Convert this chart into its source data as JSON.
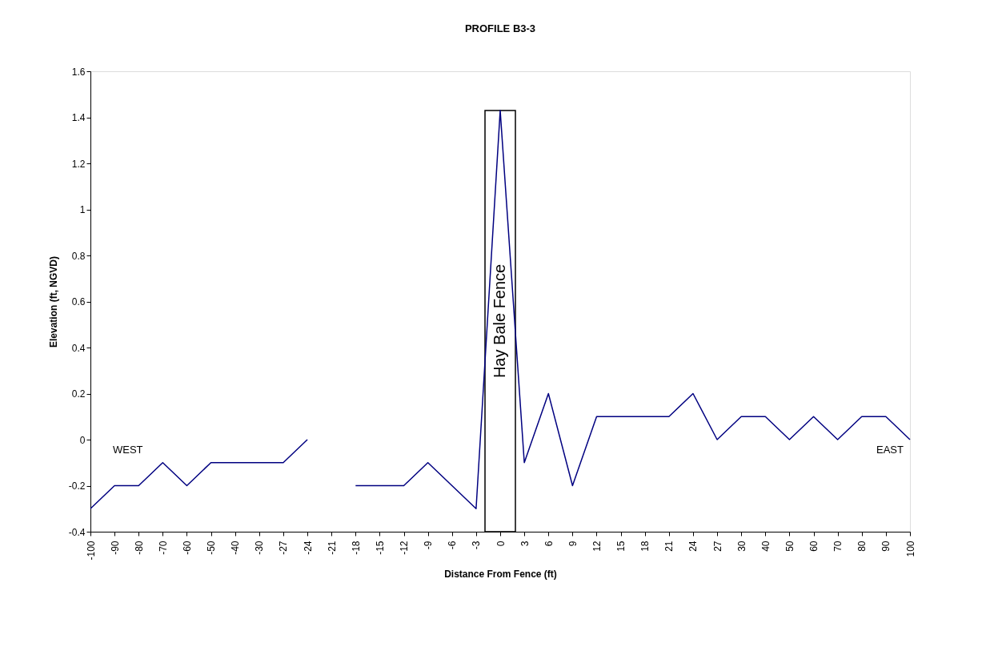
{
  "chart_data": {
    "type": "line",
    "title": "PROFILE B3-3",
    "xlabel": "Distance From Fence (ft)",
    "ylabel": "Elevation (ft, NGVD)",
    "categories": [
      "-100",
      "-90",
      "-80",
      "-70",
      "-60",
      "-50",
      "-40",
      "-30",
      "-27",
      "-24",
      "-21",
      "-18",
      "-15",
      "-12",
      "-9",
      "-6",
      "-3",
      "0",
      "3",
      "6",
      "9",
      "12",
      "15",
      "18",
      "21",
      "24",
      "27",
      "30",
      "40",
      "50",
      "60",
      "70",
      "80",
      "90",
      "100"
    ],
    "series": [
      {
        "type": "bar",
        "name": "Hay Bale Fence",
        "color": "#ffffff",
        "base": [
          null,
          null,
          null,
          null,
          null,
          null,
          null,
          null,
          null,
          null,
          null,
          null,
          null,
          null,
          null,
          null,
          null,
          -0.4,
          null,
          null,
          null,
          null,
          null,
          null,
          null,
          null,
          null,
          null,
          null,
          null,
          null,
          null,
          null,
          null,
          null
        ],
        "values": [
          null,
          null,
          null,
          null,
          null,
          null,
          null,
          null,
          null,
          null,
          null,
          null,
          null,
          null,
          null,
          null,
          null,
          1.83,
          null,
          null,
          null,
          null,
          null,
          null,
          null,
          null,
          null,
          null,
          null,
          null,
          null,
          null,
          null,
          null,
          null
        ]
      },
      {
        "color": "#000080",
        "values": [
          -0.3,
          -0.2,
          -0.2,
          -0.1,
          -0.2,
          -0.1,
          -0.1,
          -0.1,
          -0.1,
          0,
          null,
          -0.2,
          -0.2,
          -0.2,
          -0.1,
          -0.2,
          -0.3,
          1.43,
          -0.1,
          0.2,
          -0.2,
          0.1,
          0.1,
          0.1,
          0.1,
          0.2,
          0,
          0.1,
          0.1,
          0,
          0.1,
          0,
          0.1,
          0.1,
          0
        ]
      }
    ],
    "annotations": [
      "WEST",
      "EAST"
    ],
    "ylim": [
      -0.4,
      1.6
    ],
    "yticks": [
      -0.4,
      -0.2,
      0,
      0.2,
      0.4,
      0.6,
      0.8,
      1,
      1.2,
      1.4,
      1.6
    ],
    "grid": false,
    "marker": "none",
    "line_style": "solid"
  }
}
